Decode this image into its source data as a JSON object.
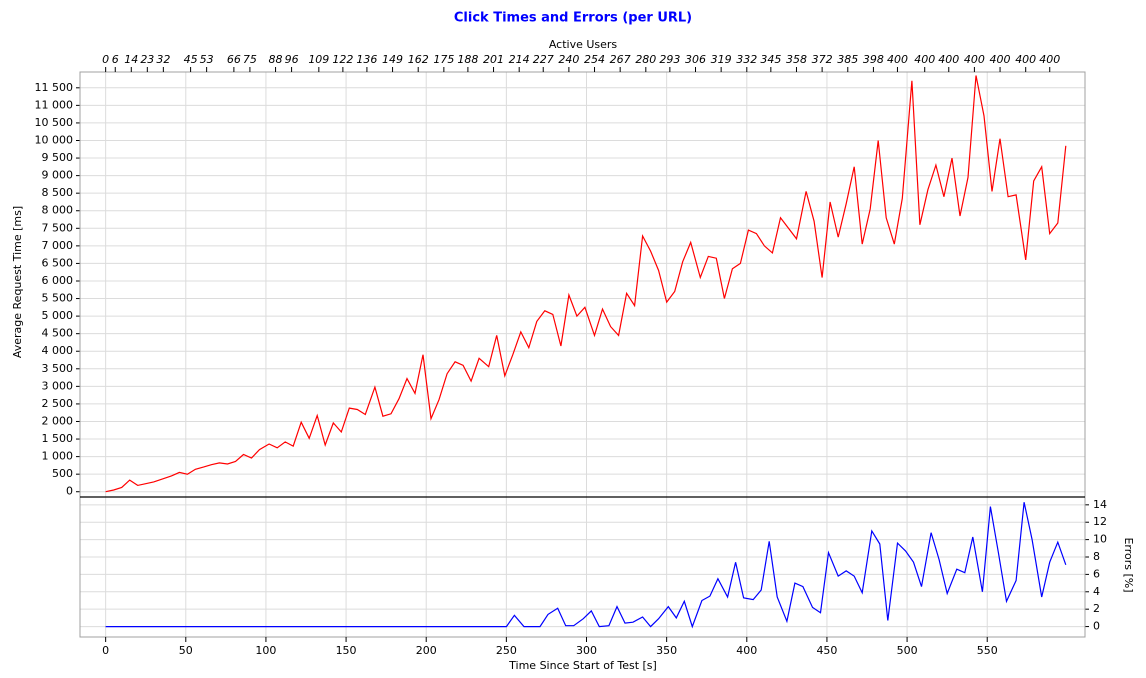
{
  "chart_data": [
    {
      "type": "line",
      "title": "Click Times and Errors (per URL)",
      "x2_label": "Active Users",
      "y_label": "Average Request Time [ms]",
      "color": "#ff0000",
      "grid": true,
      "xlim": [
        -16,
        611
      ],
      "ylim": [
        -150,
        11950
      ],
      "yticks": [
        0,
        500,
        {
          "value": 1000,
          "label": "1 000"
        },
        {
          "value": 1500,
          "label": "1 500"
        },
        {
          "value": 2000,
          "label": "2 000"
        },
        {
          "value": 2500,
          "label": "2 500"
        },
        {
          "value": 3000,
          "label": "3 000"
        },
        {
          "value": 3500,
          "label": "3 500"
        },
        {
          "value": 4000,
          "label": "4 000"
        },
        {
          "value": 4500,
          "label": "4 500"
        },
        {
          "value": 5000,
          "label": "5 000"
        },
        {
          "value": 5500,
          "label": "5 500"
        },
        {
          "value": 6000,
          "label": "6 000"
        },
        {
          "value": 6500,
          "label": "6 500"
        },
        {
          "value": 7000,
          "label": "7 000"
        },
        {
          "value": 7500,
          "label": "7 500"
        },
        {
          "value": 8000,
          "label": "8 000"
        },
        {
          "value": 8500,
          "label": "8 500"
        },
        {
          "value": 9000,
          "label": "9 000"
        },
        {
          "value": 9500,
          "label": "9 500"
        },
        {
          "value": 10000,
          "label": "10 000"
        },
        {
          "value": 10500,
          "label": "10 500"
        },
        {
          "value": 11000,
          "label": "11 000"
        },
        {
          "value": 11500,
          "label": "11 500"
        }
      ],
      "x2ticks": [
        {
          "value": 0,
          "label": "0"
        },
        {
          "value": 6,
          "label": "6"
        },
        {
          "value": 16,
          "label": "14"
        },
        {
          "value": 26,
          "label": "23"
        },
        {
          "value": 36,
          "label": "32"
        },
        {
          "value": 53,
          "label": "45"
        },
        {
          "value": 63,
          "label": "53"
        },
        {
          "value": 80,
          "label": "66"
        },
        {
          "value": 90,
          "label": "75"
        },
        {
          "value": 106,
          "label": "88"
        },
        {
          "value": 116,
          "label": "96"
        },
        {
          "value": 133,
          "label": "109"
        },
        {
          "value": 148,
          "label": "122"
        },
        {
          "value": 163,
          "label": "136"
        },
        {
          "value": 179,
          "label": "149"
        },
        {
          "value": 195,
          "label": "162"
        },
        {
          "value": 211,
          "label": "175"
        },
        {
          "value": 226,
          "label": "188"
        },
        {
          "value": 242,
          "label": "201"
        },
        {
          "value": 258,
          "label": "214"
        },
        {
          "value": 273,
          "label": "227"
        },
        {
          "value": 289,
          "label": "240"
        },
        {
          "value": 305,
          "label": "254"
        },
        {
          "value": 321,
          "label": "267"
        },
        {
          "value": 337,
          "label": "280"
        },
        {
          "value": 352,
          "label": "293"
        },
        {
          "value": 368,
          "label": "306"
        },
        {
          "value": 384,
          "label": "319"
        },
        {
          "value": 400,
          "label": "332"
        },
        {
          "value": 415,
          "label": "345"
        },
        {
          "value": 431,
          "label": "358"
        },
        {
          "value": 447,
          "label": "372"
        },
        {
          "value": 463,
          "label": "385"
        },
        {
          "value": 479,
          "label": "398"
        },
        {
          "value": 494,
          "label": "400"
        },
        {
          "value": 511,
          "label": "400"
        },
        {
          "value": 526,
          "label": "400"
        },
        {
          "value": 542,
          "label": "400"
        },
        {
          "value": 558,
          "label": "400"
        },
        {
          "value": 574,
          "label": "400"
        },
        {
          "value": 589,
          "label": "400"
        }
      ],
      "x": [
        0,
        5,
        10,
        15,
        20,
        25,
        30,
        36,
        41,
        46,
        51,
        56,
        61,
        66,
        71,
        76,
        81,
        86,
        91,
        96,
        102,
        107,
        112,
        117,
        122,
        127,
        132,
        137,
        142,
        147,
        152,
        157,
        162,
        168,
        173,
        178,
        183,
        188,
        193,
        198,
        203,
        208,
        213,
        218,
        223,
        228,
        233,
        239,
        244,
        249,
        254,
        259,
        264,
        269,
        274,
        279,
        284,
        289,
        294,
        299,
        305,
        310,
        315,
        320,
        325,
        330,
        335,
        340,
        345,
        350,
        355,
        360,
        365,
        371,
        376,
        381,
        386,
        391,
        396,
        401,
        406,
        411,
        416,
        421,
        426,
        431,
        437,
        442,
        447,
        452,
        457,
        462,
        467,
        472,
        477,
        482,
        487,
        492,
        497,
        503,
        508,
        513,
        518,
        523,
        528,
        533,
        538,
        543,
        548,
        553,
        558,
        563,
        568,
        574,
        579,
        584,
        589,
        594,
        599
      ],
      "values": [
        0,
        50,
        120,
        330,
        180,
        230,
        280,
        370,
        450,
        550,
        500,
        640,
        700,
        770,
        820,
        790,
        860,
        1060,
        960,
        1200,
        1360,
        1250,
        1420,
        1300,
        1980,
        1520,
        2170,
        1330,
        1960,
        1700,
        2380,
        2340,
        2200,
        2980,
        2150,
        2220,
        2650,
        3220,
        2800,
        3900,
        2080,
        2620,
        3360,
        3700,
        3600,
        3150,
        3800,
        3560,
        4450,
        3300,
        3900,
        4550,
        4100,
        4850,
        5150,
        5050,
        4150,
        5600,
        5000,
        5250,
        4450,
        5200,
        4700,
        4450,
        5650,
        5300,
        7280,
        6850,
        6300,
        5400,
        5700,
        6550,
        7100,
        6100,
        6700,
        6650,
        5500,
        6350,
        6500,
        7450,
        7350,
        7000,
        6800,
        7800,
        7500,
        7200,
        8550,
        7700,
        6100,
        8250,
        7250,
        8200,
        9250,
        7050,
        8050,
        10000,
        7800,
        7050,
        8350,
        11700,
        7600,
        8600,
        9300,
        8400,
        9500,
        7850,
        8950,
        11850,
        10700,
        8550,
        10050,
        8400,
        8450,
        6600,
        8850,
        9250,
        7350,
        7650,
        9850
      ]
    },
    {
      "type": "line",
      "x_label": "Time Since Start of Test [s]",
      "y_label": "Errors [%]",
      "color": "#0000ff",
      "grid": true,
      "xlim": [
        -16,
        611
      ],
      "ylim": [
        -1.2,
        14.9
      ],
      "xticks": [
        0,
        50,
        100,
        150,
        200,
        250,
        300,
        350,
        400,
        450,
        500,
        550
      ],
      "yticks": [
        0,
        2,
        4,
        6,
        8,
        10,
        12,
        14
      ],
      "x": [
        0,
        250,
        255,
        261,
        266,
        271,
        276,
        282,
        287,
        292,
        298,
        303,
        308,
        314,
        319,
        324,
        329,
        335,
        340,
        345,
        351,
        356,
        361,
        366,
        372,
        377,
        382,
        388,
        393,
        398,
        404,
        409,
        414,
        419,
        425,
        430,
        435,
        441,
        446,
        451,
        457,
        462,
        467,
        472,
        478,
        483,
        488,
        494,
        499,
        504,
        509,
        515,
        520,
        525,
        531,
        536,
        541,
        547,
        552,
        557,
        562,
        568,
        573,
        578,
        584,
        589,
        594,
        599
      ],
      "values": [
        0,
        0,
        1.3,
        0,
        0,
        0,
        1.4,
        2.1,
        0.1,
        0.1,
        0.9,
        1.8,
        0,
        0.1,
        2.3,
        0.4,
        0.5,
        1.1,
        0,
        0.9,
        2.3,
        1,
        2.9,
        0,
        3,
        3.5,
        5.5,
        3.4,
        7.4,
        3.3,
        3.1,
        4.2,
        9.8,
        3.4,
        0.6,
        5,
        4.6,
        2.2,
        1.6,
        8.5,
        5.8,
        6.4,
        5.8,
        3.9,
        11,
        9.5,
        0.7,
        9.6,
        8.7,
        7.4,
        4.6,
        10.8,
        7.7,
        3.8,
        6.6,
        6.2,
        10.3,
        4,
        13.8,
        8.5,
        2.9,
        5.3,
        14.3,
        10,
        3.4,
        7.4,
        9.7,
        7.1
      ]
    }
  ]
}
